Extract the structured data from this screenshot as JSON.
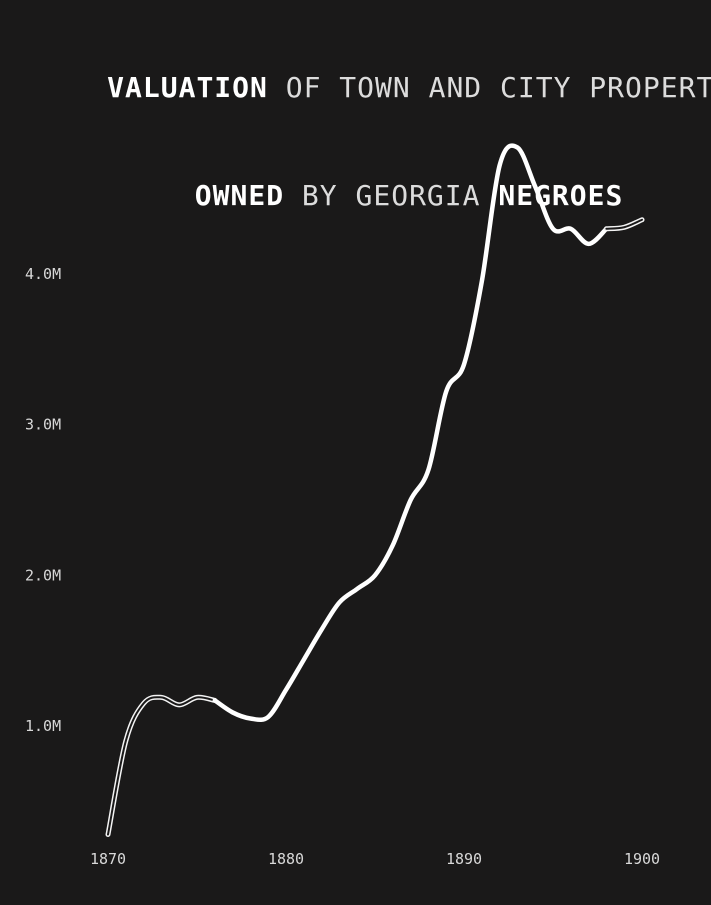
{
  "title": {
    "line1": [
      {
        "text": "VALUATION",
        "bold": true
      },
      {
        "text": " OF TOWN AND CITY PROPERTY",
        "bold": false
      }
    ],
    "line2": [
      {
        "text": "OWNED",
        "bold": true
      },
      {
        "text": " BY GEORGIA ",
        "bold": false
      },
      {
        "text": "NEGROES",
        "bold": true
      }
    ]
  },
  "chart_data": {
    "type": "line",
    "xlabel": "",
    "ylabel": "",
    "xlim": [
      1870,
      1900
    ],
    "ylim": [
      0.25,
      4.95
    ],
    "grid": false,
    "legend": "none",
    "x_ticks": [
      {
        "value": 1870,
        "label": "1870"
      },
      {
        "value": 1880,
        "label": "1880"
      },
      {
        "value": 1890,
        "label": "1890"
      },
      {
        "value": 1900,
        "label": "1900"
      }
    ],
    "y_ticks": [
      {
        "value": 1.0,
        "label": "1.0M"
      },
      {
        "value": 2.0,
        "label": "2.0M"
      },
      {
        "value": 3.0,
        "label": "3.0M"
      },
      {
        "value": 4.0,
        "label": "4.0M"
      }
    ],
    "segments": [
      {
        "style": "outline",
        "points": [
          {
            "x": 1870,
            "y": 0.28
          },
          {
            "x": 1871,
            "y": 0.9
          },
          {
            "x": 1872,
            "y": 1.15
          },
          {
            "x": 1873,
            "y": 1.19
          },
          {
            "x": 1874,
            "y": 1.14
          },
          {
            "x": 1875,
            "y": 1.19
          },
          {
            "x": 1876,
            "y": 1.17
          }
        ]
      },
      {
        "style": "solid",
        "points": [
          {
            "x": 1876,
            "y": 1.17
          },
          {
            "x": 1877,
            "y": 1.09
          },
          {
            "x": 1878,
            "y": 1.05
          },
          {
            "x": 1879,
            "y": 1.06
          },
          {
            "x": 1880,
            "y": 1.24
          },
          {
            "x": 1881,
            "y": 1.44
          },
          {
            "x": 1882,
            "y": 1.64
          },
          {
            "x": 1883,
            "y": 1.82
          },
          {
            "x": 1884,
            "y": 1.91
          },
          {
            "x": 1885,
            "y": 2.0
          },
          {
            "x": 1886,
            "y": 2.2
          },
          {
            "x": 1887,
            "y": 2.5
          },
          {
            "x": 1888,
            "y": 2.7
          },
          {
            "x": 1889,
            "y": 3.22
          },
          {
            "x": 1890,
            "y": 3.4
          },
          {
            "x": 1891,
            "y": 3.95
          },
          {
            "x": 1892,
            "y": 4.72
          },
          {
            "x": 1893,
            "y": 4.84
          },
          {
            "x": 1894,
            "y": 4.58
          },
          {
            "x": 1895,
            "y": 4.3
          },
          {
            "x": 1896,
            "y": 4.3
          },
          {
            "x": 1897,
            "y": 4.2
          },
          {
            "x": 1898,
            "y": 4.3
          }
        ]
      },
      {
        "style": "outline",
        "points": [
          {
            "x": 1898,
            "y": 4.3
          },
          {
            "x": 1899,
            "y": 4.31
          },
          {
            "x": 1900,
            "y": 4.36
          }
        ]
      }
    ]
  }
}
